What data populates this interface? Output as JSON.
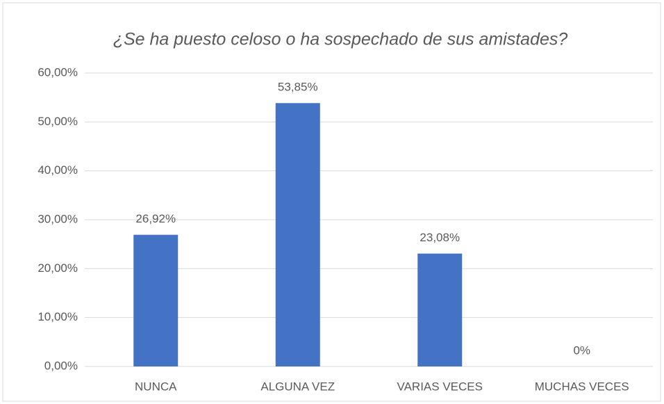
{
  "chart_data": {
    "type": "bar",
    "title": "¿Se ha puesto celoso o ha sospechado de sus amistades?",
    "categories": [
      "NUNCA",
      "ALGUNA VEZ",
      "VARIAS VECES",
      "MUCHAS VECES"
    ],
    "values": [
      26.92,
      53.85,
      23.08,
      0
    ],
    "value_labels": [
      "26,92%",
      "53,85%",
      "23,08%",
      "0%"
    ],
    "color": "#4472c4",
    "ylim": [
      0,
      60
    ],
    "yticks": [
      {
        "value": 0,
        "label": "0,00%"
      },
      {
        "value": 10,
        "label": "10,00%"
      },
      {
        "value": 20,
        "label": "20,00%"
      },
      {
        "value": 30,
        "label": "30,00%"
      },
      {
        "value": 40,
        "label": "40,00%"
      },
      {
        "value": 50,
        "label": "50,00%"
      },
      {
        "value": 60,
        "label": "60,00%"
      }
    ],
    "grid": true
  }
}
